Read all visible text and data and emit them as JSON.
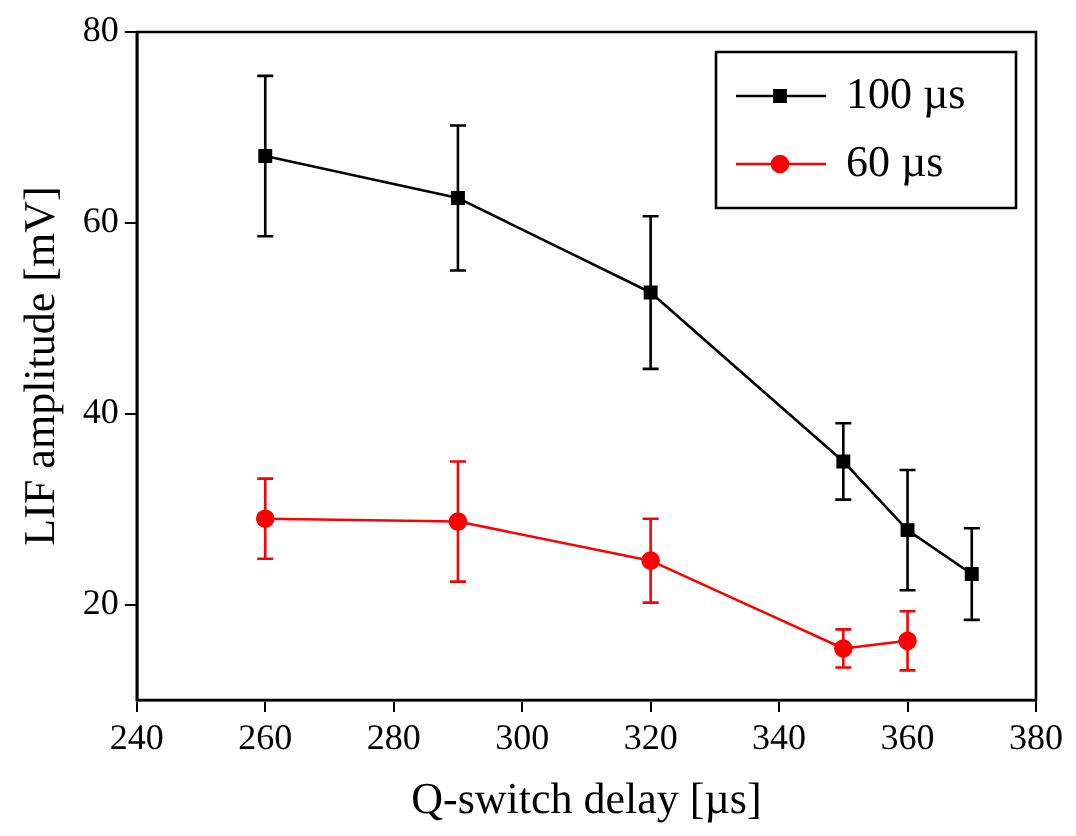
{
  "chart_data": {
    "type": "line",
    "xlabel": "Q-switch delay [µs]",
    "ylabel": "LIF amplitude [mV]",
    "xlim": [
      240,
      380
    ],
    "xticks": [
      240,
      260,
      280,
      300,
      320,
      340,
      360,
      380
    ],
    "ylim": [
      10,
      80
    ],
    "yticks": [
      20,
      40,
      60,
      80
    ],
    "grid": false,
    "legend": "top right",
    "line_style": "solid",
    "series": [
      {
        "name": "100 µs",
        "color": "#000000",
        "marker": "square",
        "x": [
          260,
          290,
          320,
          350,
          360,
          370
        ],
        "values": [
          67,
          62.6,
          52.7,
          35,
          27.8,
          23.2
        ],
        "errors": [
          8.4,
          7.6,
          8,
          4,
          6.3,
          4.8
        ]
      },
      {
        "name": "60 µs",
        "color": "#ff0000",
        "marker": "circle",
        "x": [
          260,
          290,
          320,
          350,
          360
        ],
        "values": [
          29,
          28.7,
          24.6,
          15.4,
          16.2
        ],
        "errors": [
          4.2,
          6.3,
          4.4,
          2,
          3.1
        ]
      }
    ]
  }
}
